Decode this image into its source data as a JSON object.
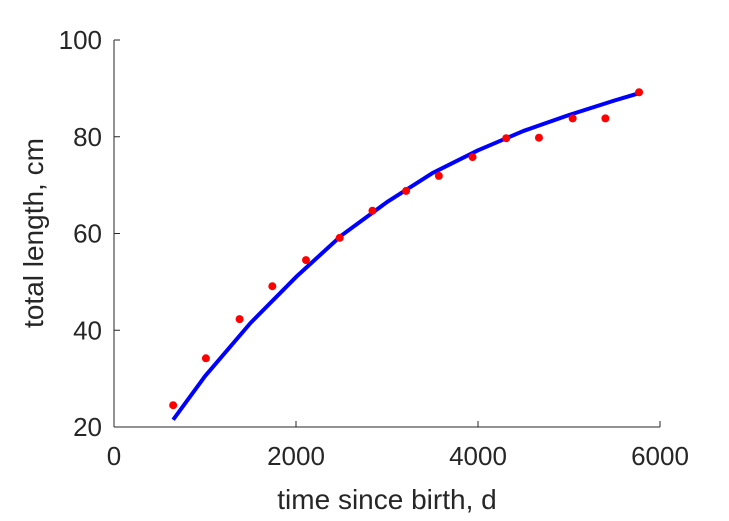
{
  "chart_data": {
    "type": "scatter",
    "title": "",
    "xlabel": "time since birth, d",
    "ylabel": "total length, cm",
    "xlim": [
      0,
      6000
    ],
    "ylim": [
      20,
      100
    ],
    "xticks": [
      0,
      2000,
      4000,
      6000
    ],
    "yticks": [
      20,
      40,
      60,
      80,
      100
    ],
    "grid": false,
    "legend": "none",
    "series": [
      {
        "kind": "points",
        "color": "#ff0000",
        "x": [
          650,
          1010,
          1380,
          1740,
          2110,
          2480,
          2840,
          3210,
          3570,
          3940,
          4310,
          4670,
          5040,
          5400,
          5770
        ],
        "y": [
          24.5,
          34.2,
          42.3,
          49.1,
          54.5,
          59.1,
          64.7,
          68.8,
          71.9,
          75.8,
          79.7,
          79.8,
          83.8,
          83.8,
          89.2
        ]
      },
      {
        "kind": "line",
        "color": "#0000ff",
        "x": [
          650,
          1000,
          1500,
          2000,
          2500,
          3000,
          3500,
          4000,
          4500,
          5000,
          5500,
          5770
        ],
        "y": [
          21.5,
          30.5,
          41.5,
          51.0,
          59.6,
          66.5,
          72.5,
          77.2,
          81.2,
          84.5,
          87.5,
          89.0
        ]
      }
    ]
  }
}
